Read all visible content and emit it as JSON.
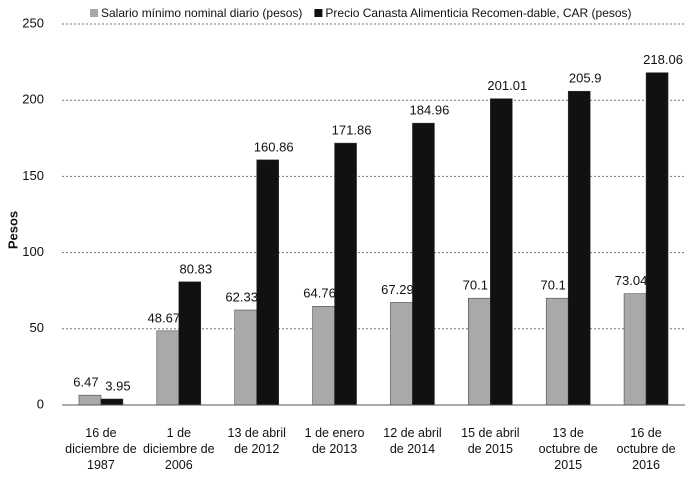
{
  "chart_data": {
    "type": "bar",
    "categories": [
      "16 de diciembre de 1987",
      "1 de diciembre de 2006",
      "13 de abril de 2012",
      "1 de enero de 2013",
      "12 de abril de 2014",
      "15 de abril de 2015",
      "13 de octubre de 2015",
      "16 de octubre de 2016"
    ],
    "series": [
      {
        "name": "Salario mínimo nominal diario (pesos)",
        "color": "#a9a9a9",
        "values": [
          6.47,
          48.67,
          62.33,
          64.76,
          67.29,
          70.1,
          70.1,
          73.04
        ]
      },
      {
        "name": "Precio Canasta Alimenticia Recomen-dable, CAR (pesos)",
        "color": "#111111",
        "values": [
          3.95,
          80.83,
          160.86,
          171.86,
          184.96,
          201.01,
          205.9,
          218.06
        ]
      }
    ],
    "ylabel": "Pesos",
    "ylim": [
      0,
      250
    ],
    "yticks": [
      0,
      50,
      100,
      150,
      200,
      250
    ],
    "grid": true,
    "legend": "top"
  }
}
